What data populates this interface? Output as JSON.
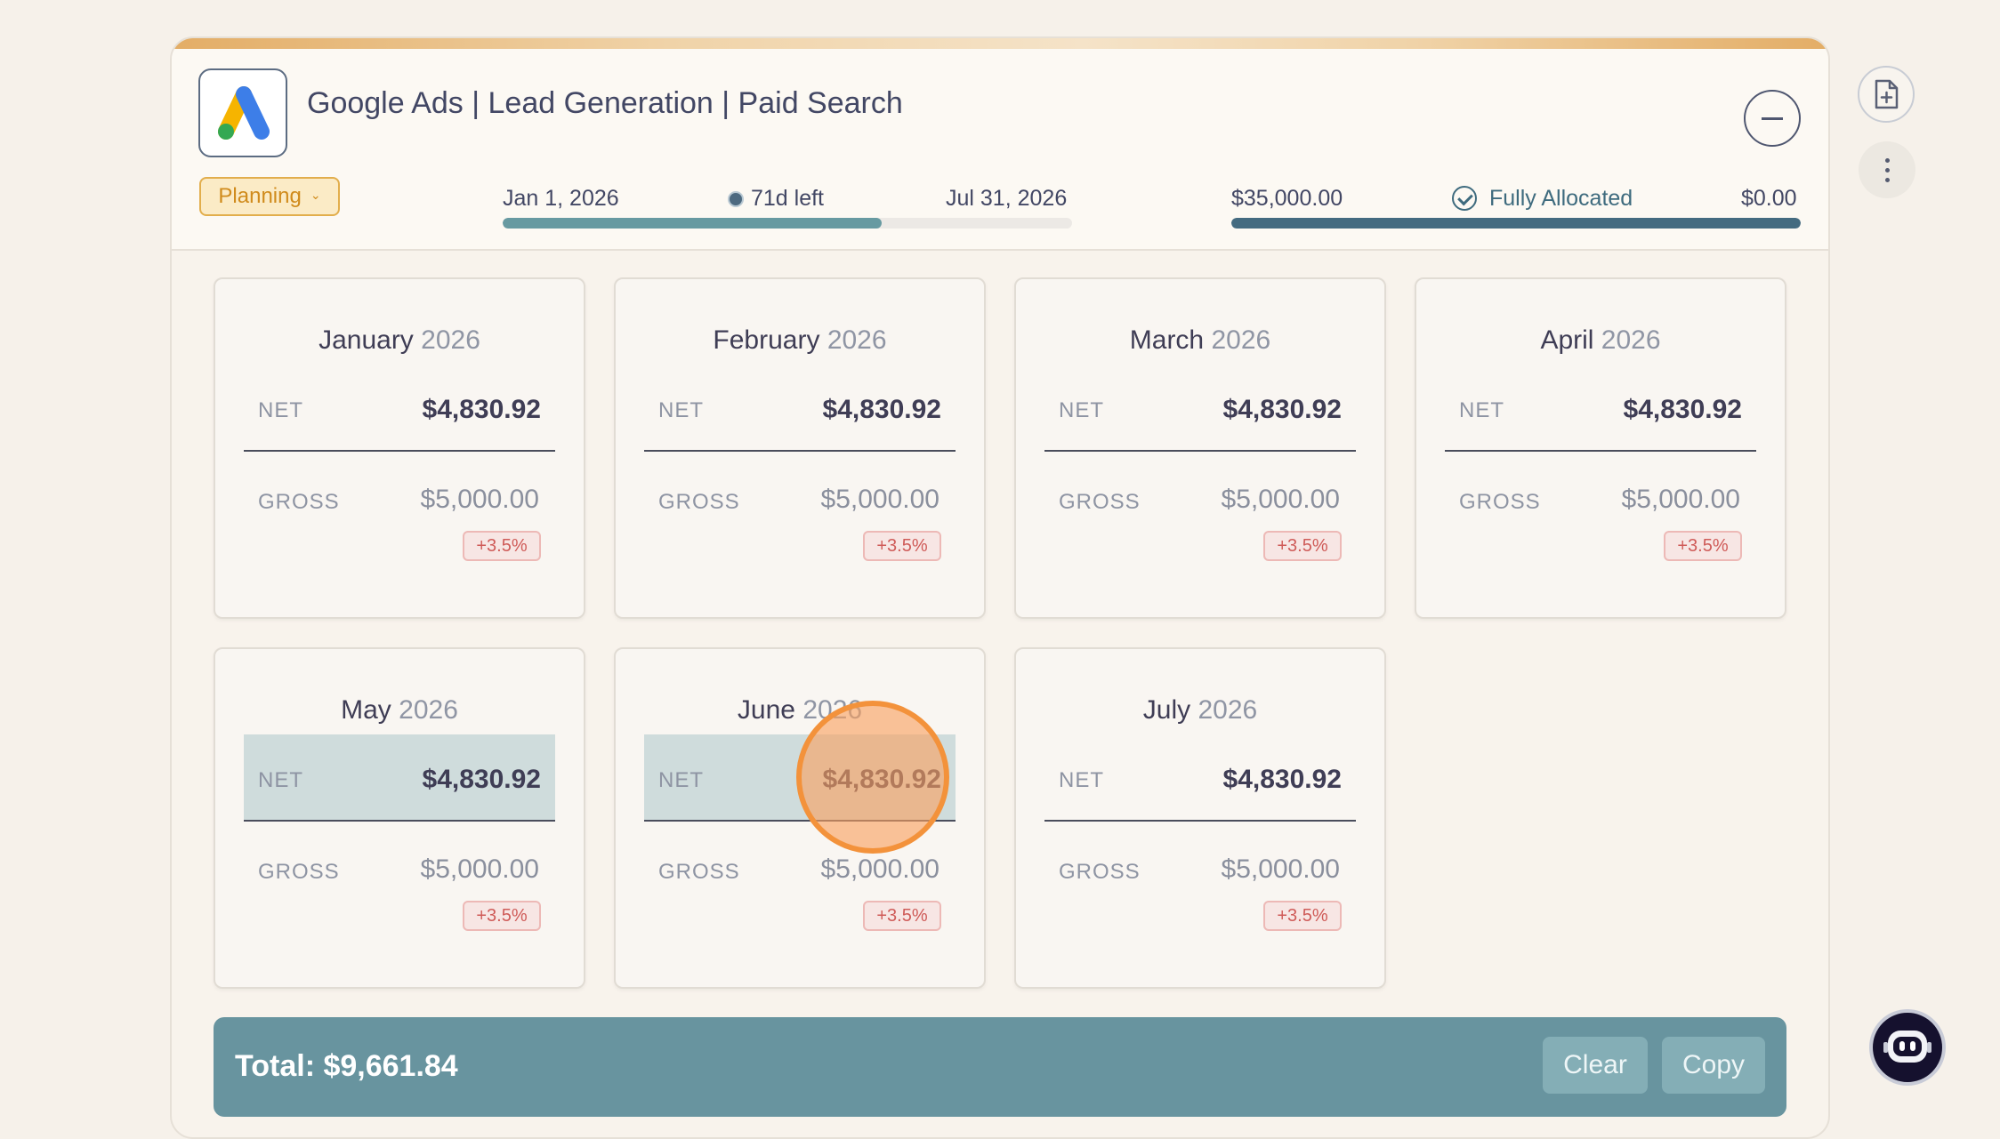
{
  "campaign": {
    "title": "Google Ads | Lead Generation | Paid Search",
    "status": "Planning",
    "start_date": "Jan 1, 2026",
    "end_date": "Jul 31, 2026",
    "days_left": "71d left",
    "time_elapsed_fraction": 0.665,
    "budget_total": "$35,000.00",
    "allocation_status": "Fully Allocated",
    "budget_remaining": "$0.00",
    "budget_allocated_fraction": 1.0
  },
  "months": [
    {
      "month": "January",
      "year": "2026",
      "net_label": "NET",
      "net": "$4,830.92",
      "gross_label": "GROSS",
      "gross": "$5,000.00",
      "fee": "+3.5%"
    },
    {
      "month": "February",
      "year": "2026",
      "net_label": "NET",
      "net": "$4,830.92",
      "gross_label": "GROSS",
      "gross": "$5,000.00",
      "fee": "+3.5%"
    },
    {
      "month": "March",
      "year": "2026",
      "net_label": "NET",
      "net": "$4,830.92",
      "gross_label": "GROSS",
      "gross": "$5,000.00",
      "fee": "+3.5%"
    },
    {
      "month": "April",
      "year": "2026",
      "net_label": "NET",
      "net": "$4,830.92",
      "gross_label": "GROSS",
      "gross": "$5,000.00",
      "fee": "+3.5%"
    },
    {
      "month": "May",
      "year": "2026",
      "net_label": "NET",
      "net": "$4,830.92",
      "gross_label": "GROSS",
      "gross": "$5,000.00",
      "fee": "+3.5%",
      "selected": true
    },
    {
      "month": "June",
      "year": "2026",
      "net_label": "NET",
      "net": "$4,830.92",
      "gross_label": "GROSS",
      "gross": "$5,000.00",
      "fee": "+3.5%",
      "selected": true
    },
    {
      "month": "July",
      "year": "2026",
      "net_label": "NET",
      "net": "$4,830.92",
      "gross_label": "GROSS",
      "gross": "$5,000.00",
      "fee": "+3.5%"
    }
  ],
  "selection_bar": {
    "total": "Total: $9,661.84",
    "clear_label": "Clear",
    "copy_label": "Copy"
  },
  "icons": {
    "logo": "google-ads-logo",
    "collapse": "minus-icon",
    "status_dropdown": "chevron-down-icon",
    "timeline_marker": "dot-icon",
    "allocation": "check-circle-icon",
    "side_top": "file-plus-icon",
    "side_more": "more-vertical-icon",
    "assistant": "robot-icon"
  },
  "colors": {
    "accent": "#68949f",
    "status_pill_bg": "#fbebc6",
    "status_pill_text": "#d08b1c",
    "fee_badge_text": "#cf5b58",
    "selected_row": "#cfdcdc",
    "timeline_fill": "#679aa1",
    "budget_fill": "#446b80"
  }
}
